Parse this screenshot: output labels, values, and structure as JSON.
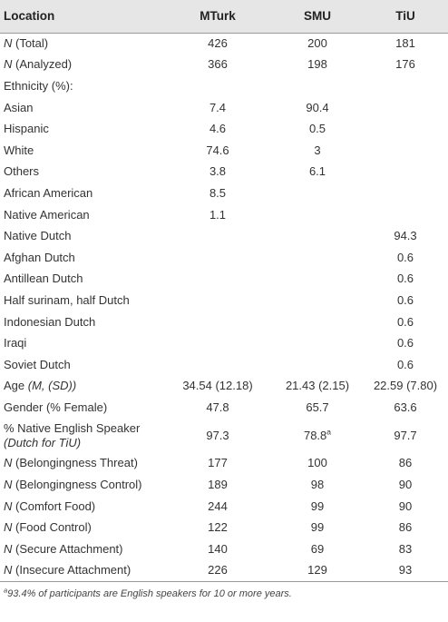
{
  "header": {
    "location": "Location",
    "mturk": "MTurk",
    "smu": "SMU",
    "tiu": "TiU"
  },
  "rows": [
    {
      "n": "N",
      "label": " (Total)",
      "mturk": "426",
      "smu": "200",
      "tiu": "181"
    },
    {
      "n": "N",
      "label": " (Analyzed)",
      "mturk": "366",
      "smu": "198",
      "tiu": "176"
    },
    {
      "n": "",
      "label": "Ethnicity (%):",
      "mturk": "",
      "smu": "",
      "tiu": ""
    },
    {
      "n": "",
      "label": "Asian",
      "mturk": "7.4",
      "smu": "90.4",
      "tiu": ""
    },
    {
      "n": "",
      "label": "Hispanic",
      "mturk": "4.6",
      "smu": "0.5",
      "tiu": ""
    },
    {
      "n": "",
      "label": "White",
      "mturk": "74.6",
      "smu": "3",
      "tiu": ""
    },
    {
      "n": "",
      "label": "Others",
      "mturk": "3.8",
      "smu": "6.1",
      "tiu": ""
    },
    {
      "n": "",
      "label": "African American",
      "mturk": "8.5",
      "smu": "",
      "tiu": ""
    },
    {
      "n": "",
      "label": "Native American",
      "mturk": "1.1",
      "smu": "",
      "tiu": ""
    },
    {
      "n": "",
      "label": "Native Dutch",
      "mturk": "",
      "smu": "",
      "tiu": "94.3"
    },
    {
      "n": "",
      "label": "Afghan Dutch",
      "mturk": "",
      "smu": "",
      "tiu": "0.6"
    },
    {
      "n": "",
      "label": "Antillean Dutch",
      "mturk": "",
      "smu": "",
      "tiu": "0.6"
    },
    {
      "n": "",
      "label": "Half surinam, half Dutch",
      "mturk": "",
      "smu": "",
      "tiu": "0.6"
    },
    {
      "n": "",
      "label": "Indonesian Dutch",
      "mturk": "",
      "smu": "",
      "tiu": "0.6"
    },
    {
      "n": "",
      "label": "Iraqi",
      "mturk": "",
      "smu": "",
      "tiu": "0.6"
    },
    {
      "n": "",
      "label": "Soviet Dutch",
      "mturk": "",
      "smu": "",
      "tiu": "0.6"
    }
  ],
  "age": {
    "label": "Age ",
    "stat": "(M, (SD))",
    "mturk": "34.54 (12.18)",
    "smu": "21.43 (2.15)",
    "tiu": "22.59 (7.80)"
  },
  "gender": {
    "label": "Gender (% Female)",
    "mturk": "47.8",
    "smu": "65.7",
    "tiu": "63.6"
  },
  "native": {
    "label": "% Native English Speaker",
    "sublabel": "(Dutch for TiU)",
    "mturk": "97.3",
    "smu": "78.8",
    "smu_sup": "a",
    "tiu": "97.7"
  },
  "conditions": [
    {
      "n": "N",
      "label": " (Belongingness Threat)",
      "mturk": "177",
      "smu": "100",
      "tiu": "86"
    },
    {
      "n": "N",
      "label": " (Belongingness Control)",
      "mturk": "189",
      "smu": "98",
      "tiu": "90"
    },
    {
      "n": "N",
      "label": " (Comfort Food)",
      "mturk": "244",
      "smu": "99",
      "tiu": "90"
    },
    {
      "n": "N",
      "label": " (Food Control)",
      "mturk": "122",
      "smu": "99",
      "tiu": "86"
    },
    {
      "n": "N",
      "label": " (Secure Attachment)",
      "mturk": "140",
      "smu": "69",
      "tiu": "83"
    },
    {
      "n": "N",
      "label": " (Insecure Attachment)",
      "mturk": "226",
      "smu": "129",
      "tiu": "93"
    }
  ],
  "footnote": {
    "mark": "a",
    "text": "93.4% of participants are English speakers for 10 or more years."
  }
}
